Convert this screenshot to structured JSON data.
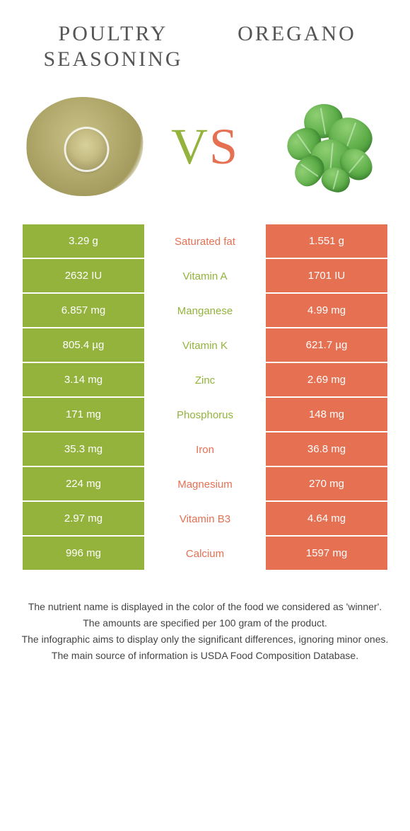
{
  "colors": {
    "green": "#93b33c",
    "orange": "#e57052",
    "vs_v": "#93b33c",
    "vs_s": "#e57052"
  },
  "header": {
    "left_title": "Poultry seasoning",
    "right_title": "Oregano",
    "vs_v": "V",
    "vs_s": "S"
  },
  "comparison": {
    "type": "table",
    "left_bg": "#93b33c",
    "right_bg": "#e57052",
    "rows": [
      {
        "left": "3.29 g",
        "label": "Saturated fat",
        "right": "1.551 g",
        "winner": "right"
      },
      {
        "left": "2632 IU",
        "label": "Vitamin A",
        "right": "1701 IU",
        "winner": "left"
      },
      {
        "left": "6.857 mg",
        "label": "Manganese",
        "right": "4.99 mg",
        "winner": "left"
      },
      {
        "left": "805.4 µg",
        "label": "Vitamin K",
        "right": "621.7 µg",
        "winner": "left"
      },
      {
        "left": "3.14 mg",
        "label": "Zinc",
        "right": "2.69 mg",
        "winner": "left"
      },
      {
        "left": "171 mg",
        "label": "Phosphorus",
        "right": "148 mg",
        "winner": "left"
      },
      {
        "left": "35.3 mg",
        "label": "Iron",
        "right": "36.8 mg",
        "winner": "right"
      },
      {
        "left": "224 mg",
        "label": "Magnesium",
        "right": "270 mg",
        "winner": "right"
      },
      {
        "left": "2.97 mg",
        "label": "Vitamin B3",
        "right": "4.64 mg",
        "winner": "right"
      },
      {
        "left": "996 mg",
        "label": "Calcium",
        "right": "1597 mg",
        "winner": "right"
      }
    ]
  },
  "footnotes": [
    "The nutrient name is displayed in the color of the food we considered as 'winner'.",
    "The amounts are specified per 100 gram of the product.",
    "The infographic aims to display only the significant differences, ignoring minor ones.",
    "The main source of information is USDA Food Composition Database."
  ]
}
